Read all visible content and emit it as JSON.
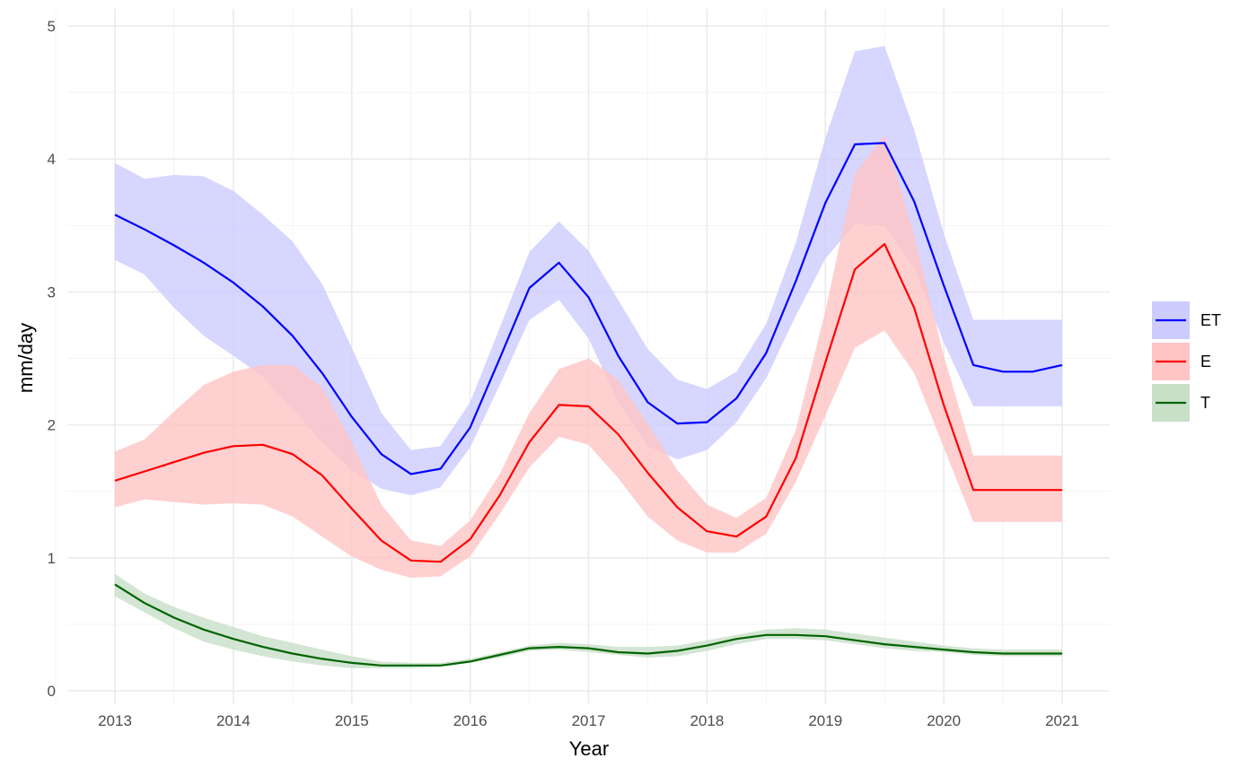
{
  "chart_data": {
    "type": "line",
    "xlabel": "Year",
    "ylabel": "mm/day",
    "xlim": [
      2013,
      2021
    ],
    "ylim": [
      0,
      5
    ],
    "x_ticks": [
      "2013",
      "2014",
      "2015",
      "2016",
      "2017",
      "2018",
      "2019",
      "2020",
      "2021"
    ],
    "y_ticks": [
      "0",
      "1",
      "2",
      "3",
      "4",
      "5"
    ],
    "grid": true,
    "legend_position": "right",
    "x": [
      2013.0,
      2013.25,
      2013.5,
      2013.75,
      2014.0,
      2014.25,
      2014.5,
      2014.75,
      2015.0,
      2015.25,
      2015.5,
      2015.75,
      2016.0,
      2016.25,
      2016.5,
      2016.75,
      2017.0,
      2017.25,
      2017.5,
      2017.75,
      2018.0,
      2018.25,
      2018.5,
      2018.75,
      2019.0,
      2019.25,
      2019.5,
      2019.75,
      2020.0,
      2020.25,
      2020.5,
      2020.75,
      2021.0
    ],
    "series": [
      {
        "name": "ET",
        "color": "#0000ff",
        "fill": "#ccccff",
        "values": [
          3.58,
          3.47,
          3.35,
          3.22,
          3.07,
          2.89,
          2.67,
          2.39,
          2.06,
          1.78,
          1.63,
          1.67,
          1.98,
          2.5,
          3.03,
          3.22,
          2.96,
          2.52,
          2.17,
          2.01,
          2.02,
          2.2,
          2.54,
          3.08,
          3.67,
          4.11,
          4.12,
          3.68,
          3.05,
          2.45,
          2.4,
          2.4,
          2.45
        ],
        "lower": [
          3.24,
          3.13,
          2.88,
          2.67,
          2.52,
          2.36,
          2.12,
          1.87,
          1.66,
          1.52,
          1.47,
          1.53,
          1.83,
          2.3,
          2.79,
          2.94,
          2.65,
          2.17,
          1.84,
          1.74,
          1.81,
          2.02,
          2.35,
          2.82,
          3.25,
          3.51,
          3.5,
          3.18,
          2.62,
          2.14,
          2.14,
          2.14,
          2.14
        ],
        "upper": [
          3.97,
          3.85,
          3.88,
          3.87,
          3.76,
          3.58,
          3.38,
          3.06,
          2.58,
          2.09,
          1.81,
          1.84,
          2.17,
          2.73,
          3.3,
          3.53,
          3.31,
          2.94,
          2.57,
          2.34,
          2.27,
          2.4,
          2.76,
          3.37,
          4.16,
          4.81,
          4.85,
          4.22,
          3.44,
          2.79,
          2.79,
          2.79,
          2.79
        ]
      },
      {
        "name": "E",
        "color": "#ff0000",
        "fill": "#ffc4c4",
        "values": [
          1.58,
          1.65,
          1.72,
          1.79,
          1.84,
          1.85,
          1.78,
          1.62,
          1.37,
          1.13,
          0.98,
          0.97,
          1.14,
          1.47,
          1.87,
          2.15,
          2.14,
          1.93,
          1.64,
          1.38,
          1.2,
          1.16,
          1.31,
          1.75,
          2.47,
          3.17,
          3.36,
          2.88,
          2.15,
          1.51,
          1.51,
          1.51,
          1.51
        ],
        "lower": [
          1.38,
          1.44,
          1.42,
          1.4,
          1.41,
          1.4,
          1.31,
          1.16,
          1.01,
          0.91,
          0.85,
          0.86,
          1.01,
          1.33,
          1.68,
          1.91,
          1.85,
          1.6,
          1.31,
          1.13,
          1.04,
          1.04,
          1.18,
          1.57,
          2.07,
          2.58,
          2.71,
          2.39,
          1.83,
          1.27,
          1.27,
          1.27,
          1.27
        ],
        "upper": [
          1.8,
          1.89,
          2.1,
          2.3,
          2.4,
          2.45,
          2.45,
          2.28,
          1.87,
          1.4,
          1.13,
          1.09,
          1.28,
          1.63,
          2.09,
          2.42,
          2.5,
          2.34,
          2.01,
          1.66,
          1.4,
          1.3,
          1.45,
          1.96,
          2.86,
          3.89,
          4.18,
          3.43,
          2.52,
          1.77,
          1.77,
          1.77,
          1.77
        ]
      },
      {
        "name": "T",
        "color": "#006400",
        "fill": "#c8dfc8",
        "values": [
          0.8,
          0.66,
          0.55,
          0.46,
          0.39,
          0.33,
          0.28,
          0.24,
          0.21,
          0.19,
          0.19,
          0.19,
          0.22,
          0.27,
          0.32,
          0.33,
          0.32,
          0.29,
          0.28,
          0.3,
          0.34,
          0.39,
          0.42,
          0.42,
          0.41,
          0.38,
          0.35,
          0.33,
          0.31,
          0.29,
          0.28,
          0.28,
          0.28
        ],
        "lower": [
          0.71,
          0.59,
          0.47,
          0.37,
          0.31,
          0.26,
          0.22,
          0.19,
          0.17,
          0.17,
          0.17,
          0.18,
          0.21,
          0.25,
          0.3,
          0.31,
          0.29,
          0.27,
          0.25,
          0.26,
          0.3,
          0.35,
          0.39,
          0.39,
          0.38,
          0.35,
          0.32,
          0.3,
          0.29,
          0.27,
          0.26,
          0.26,
          0.26
        ],
        "upper": [
          0.88,
          0.73,
          0.63,
          0.55,
          0.48,
          0.41,
          0.36,
          0.31,
          0.26,
          0.22,
          0.21,
          0.21,
          0.24,
          0.29,
          0.34,
          0.36,
          0.35,
          0.33,
          0.33,
          0.34,
          0.38,
          0.42,
          0.46,
          0.47,
          0.46,
          0.43,
          0.4,
          0.37,
          0.34,
          0.32,
          0.31,
          0.31,
          0.31
        ]
      }
    ]
  }
}
